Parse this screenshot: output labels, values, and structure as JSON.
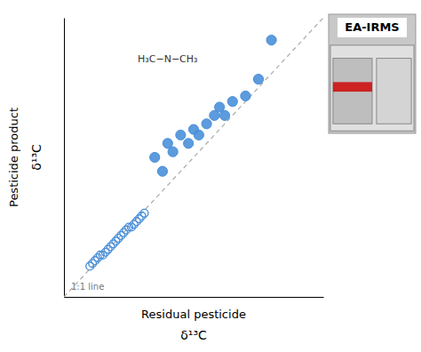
{
  "chart_data": {
    "type": "scatter",
    "xlabel": [
      "Residual pesticide",
      "δ¹³C"
    ],
    "ylabel": [
      "Pesticide product",
      "δ¹³C"
    ],
    "annotations": [
      "1:1 line",
      "H₃C−N−CH₃",
      "EA-IRMS"
    ],
    "xlim": [
      0,
      10
    ],
    "ylim": [
      0,
      10
    ],
    "tick_labels": false,
    "series": [
      {
        "marker": "open-circle",
        "color": "#4A90D9",
        "x": [
          1.0,
          1.1,
          1.2,
          1.3,
          1.4,
          1.5,
          1.6,
          1.7,
          1.8,
          1.9,
          2.0,
          2.1,
          2.2,
          2.3,
          2.4,
          2.5,
          2.6,
          2.7,
          2.8,
          2.9,
          3.0,
          3.1
        ],
        "values": [
          1.1,
          1.2,
          1.3,
          1.4,
          1.5,
          1.5,
          1.6,
          1.7,
          1.8,
          1.9,
          2.0,
          2.1,
          2.2,
          2.3,
          2.4,
          2.5,
          2.5,
          2.6,
          2.7,
          2.8,
          2.9,
          3.0
        ]
      },
      {
        "marker": "circle",
        "color": "#4A90D9",
        "x": [
          3.5,
          3.8,
          4.0,
          4.2,
          4.5,
          4.8,
          5.0,
          5.2,
          5.5,
          5.8,
          6.0,
          6.2,
          6.5,
          7.0,
          7.5,
          8.0
        ],
        "values": [
          5.0,
          4.5,
          5.5,
          5.2,
          5.8,
          5.5,
          6.0,
          5.8,
          6.2,
          6.5,
          6.8,
          6.5,
          7.0,
          7.2,
          7.8,
          9.2
        ]
      }
    ]
  }
}
